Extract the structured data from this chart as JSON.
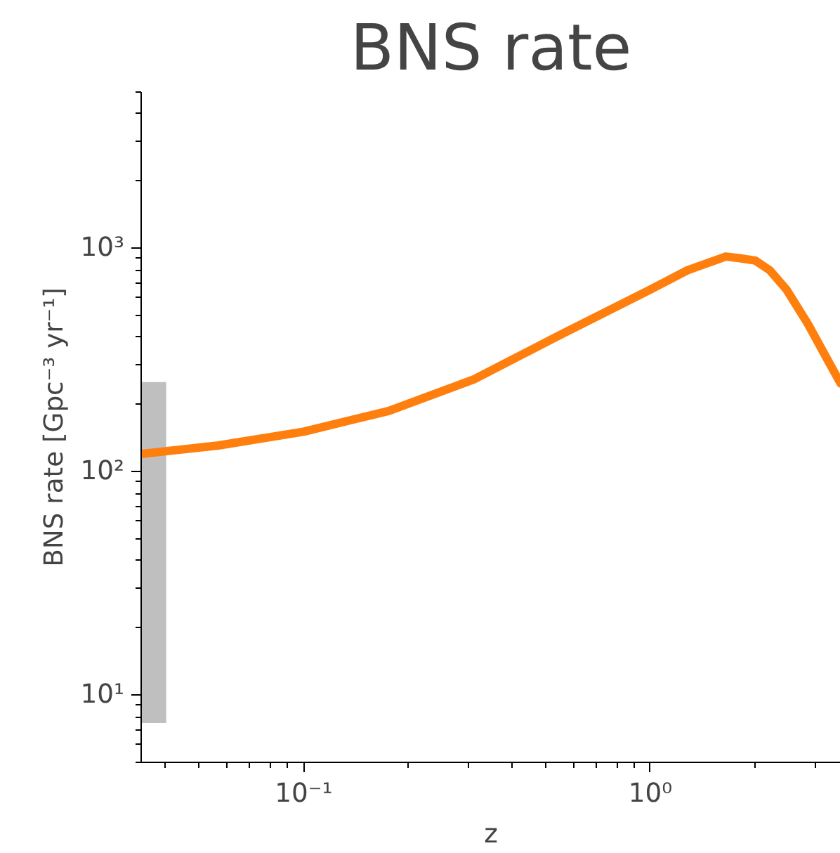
{
  "chart_data": {
    "type": "line",
    "title": "BNS rate",
    "xlabel": "z",
    "ylabel": "BNS rate [Gpc⁻³ yr⁻¹]",
    "log": "xy",
    "grid": false,
    "xlim": [
      0.034,
      3.54
    ],
    "ylim": [
      5,
      5000
    ],
    "xticks": [
      {
        "value": 0.1,
        "label": "10⁻¹"
      },
      {
        "value": 1,
        "label": "10⁰"
      }
    ],
    "yticks": [
      {
        "value": 10,
        "label": "10¹"
      },
      {
        "value": 100,
        "label": "10²"
      },
      {
        "value": 1000,
        "label": "10³"
      }
    ],
    "series": [
      {
        "type": "bar",
        "color": "#bfbfbf",
        "x": [
          0.037
        ],
        "values": [
          244.5
        ],
        "base": [
          7.5
        ]
      },
      {
        "color": "#ff7f0e",
        "x": [
          0.034,
          0.0568,
          0.1,
          0.176,
          0.31,
          0.547,
          1.0,
          1.28,
          1.65,
          1.83,
          2.01,
          2.21,
          2.47,
          2.85,
          3.28,
          3.54
        ],
        "values": [
          120,
          131,
          151,
          187,
          259,
          408,
          653,
          797,
          918,
          900,
          880,
          797,
          653,
          457,
          307,
          248
        ]
      }
    ]
  }
}
